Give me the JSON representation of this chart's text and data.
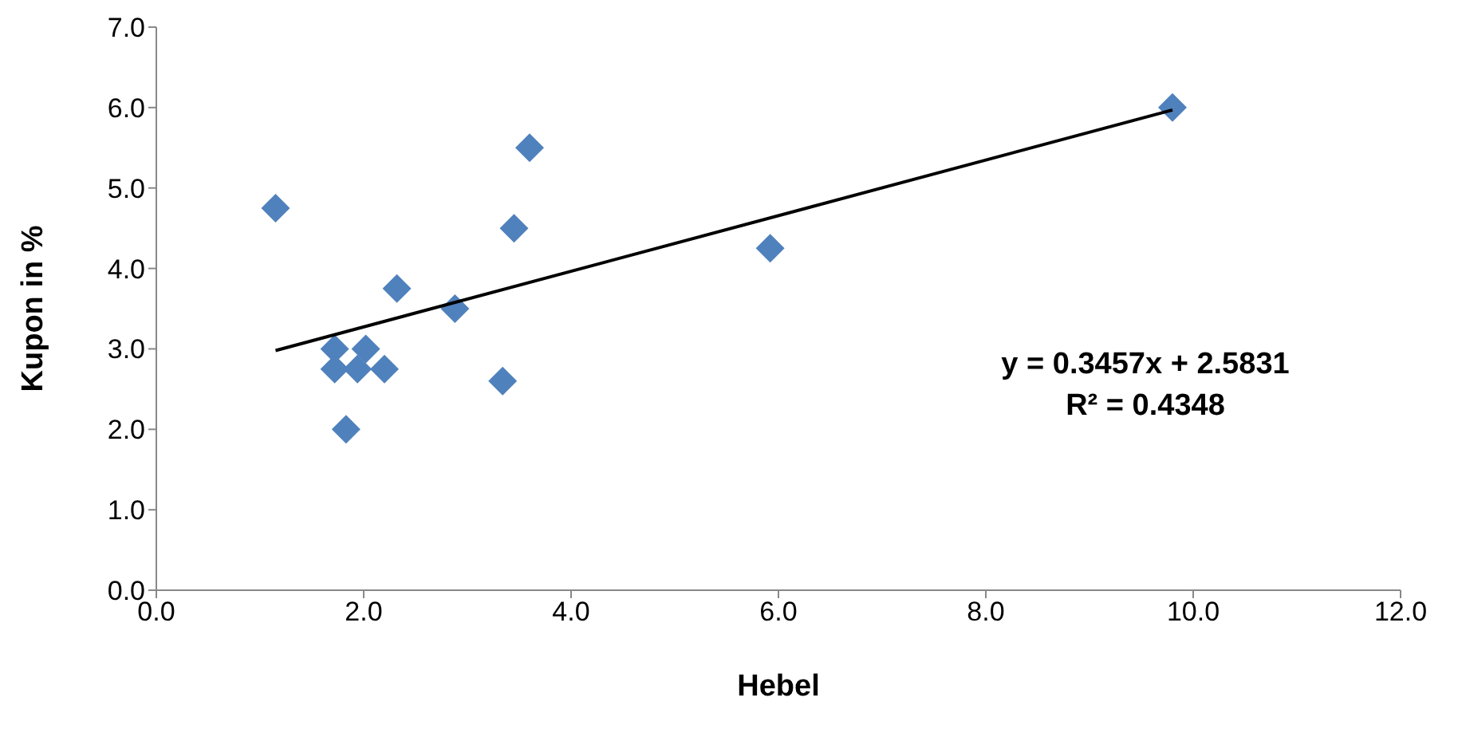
{
  "chart_data": {
    "type": "scatter",
    "xlabel": "Hebel",
    "ylabel": "Kupon in %",
    "series": [
      {
        "type": "scatter",
        "color": "#4f81bd",
        "marker": "diamond",
        "x": [
          1.15,
          1.72,
          1.72,
          1.83,
          1.94,
          2.02,
          2.2,
          2.32,
          2.88,
          3.34,
          3.45,
          3.6,
          5.92,
          9.8
        ],
        "values": [
          4.75,
          3.0,
          2.75,
          2.0,
          2.75,
          3.0,
          2.75,
          3.75,
          3.5,
          2.6,
          4.5,
          5.5,
          4.25,
          6.0
        ]
      },
      {
        "type": "line",
        "color": "#000000",
        "marker": "none",
        "x": [
          1.15,
          9.8
        ],
        "values": [
          2.98,
          5.97
        ]
      }
    ],
    "xlim": [
      0,
      12
    ],
    "xticks": [
      {
        "value": 0,
        "label": "0.0"
      },
      {
        "value": 2,
        "label": "2.0"
      },
      {
        "value": 4,
        "label": "4.0"
      },
      {
        "value": 6,
        "label": "6.0"
      },
      {
        "value": 8,
        "label": "8.0"
      },
      {
        "value": 10,
        "label": "10.0"
      },
      {
        "value": 12,
        "label": "12.0"
      }
    ],
    "ylim": [
      0,
      7
    ],
    "yticks": [
      {
        "value": 0,
        "label": "0.0"
      },
      {
        "value": 1,
        "label": "1.0"
      },
      {
        "value": 2,
        "label": "2.0"
      },
      {
        "value": 3,
        "label": "3.0"
      },
      {
        "value": 4,
        "label": "4.0"
      },
      {
        "value": 5,
        "label": "5.0"
      },
      {
        "value": 6,
        "label": "6.0"
      },
      {
        "value": 7,
        "label": "7.0"
      }
    ],
    "grid": false,
    "legend": false,
    "annotations": [
      "y = 0.3457x  + 2.5831",
      "R² = 0.4348"
    ]
  }
}
